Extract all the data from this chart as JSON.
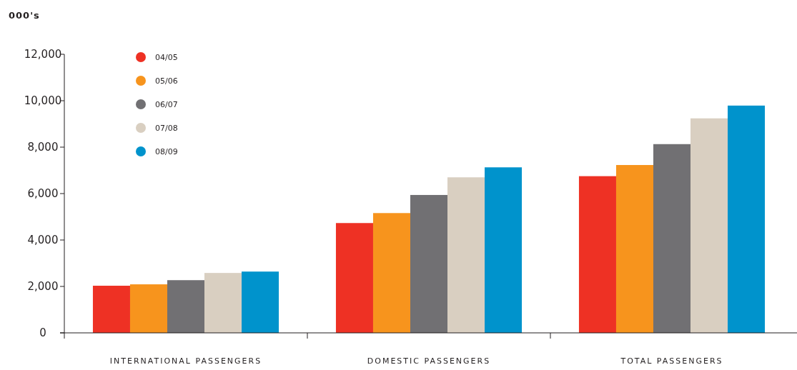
{
  "chart_data": {
    "type": "bar",
    "ylabel": "000's",
    "categories": [
      "INTERNATIONAL PASSENGERS",
      "DOMESTIC PASSENGERS",
      "TOTAL PASSENGERS"
    ],
    "series": [
      {
        "name": "04/05",
        "color": "#ee3124",
        "values": [
          2030,
          4730,
          6750
        ]
      },
      {
        "name": "05/06",
        "color": "#f7941d",
        "values": [
          2090,
          5160,
          7230
        ]
      },
      {
        "name": "06/07",
        "color": "#717073",
        "values": [
          2270,
          5940,
          8130
        ]
      },
      {
        "name": "07/08",
        "color": "#d9cfc1",
        "values": [
          2580,
          6700,
          9240
        ]
      },
      {
        "name": "08/09",
        "color": "#0093cc",
        "values": [
          2640,
          7130,
          9790
        ]
      }
    ],
    "ylim": [
      0,
      12000
    ],
    "yticks": [
      {
        "value": 0,
        "label": "0"
      },
      {
        "value": 2000,
        "label": "2,000"
      },
      {
        "value": 4000,
        "label": "4,000"
      },
      {
        "value": 6000,
        "label": "6,000"
      },
      {
        "value": 8000,
        "label": "8,000"
      },
      {
        "value": 10000,
        "label": "10,000"
      },
      {
        "value": 12000,
        "label": "12,000"
      }
    ],
    "legend": "top left",
    "grid": false
  }
}
